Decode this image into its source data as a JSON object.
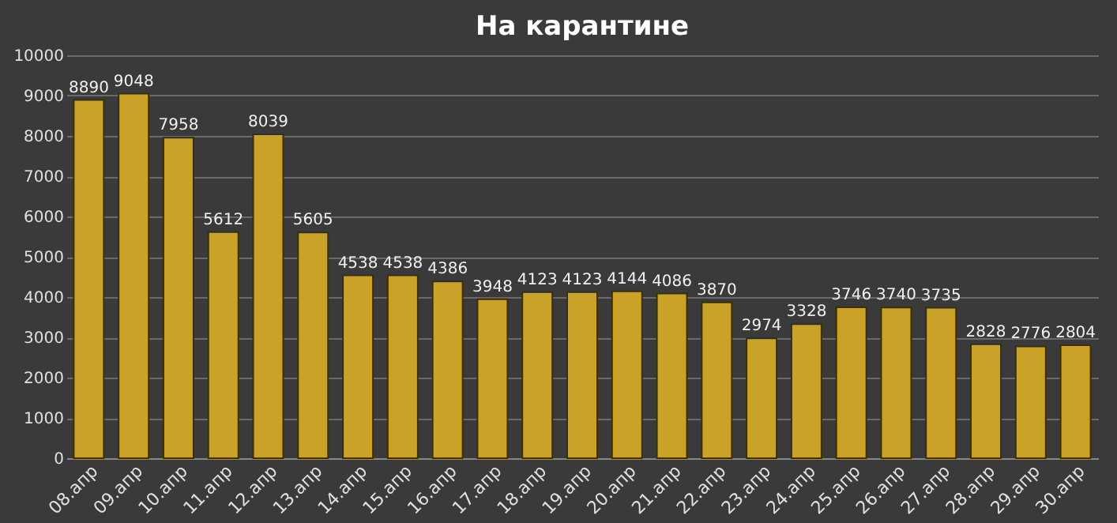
{
  "chart_data": {
    "type": "bar",
    "title": "На карантине",
    "categories": [
      "08.апр",
      "09.апр",
      "10.апр",
      "11.апр",
      "12.апр",
      "13.апр",
      "14.апр",
      "15.апр",
      "16.апр",
      "17.апр",
      "18.апр",
      "19.апр",
      "20.апр",
      "21.апр",
      "22.апр",
      "23.апр",
      "24.апр",
      "25.апр",
      "26.апр",
      "27.апр",
      "28.апр",
      "29.апр",
      "30.апр"
    ],
    "values": [
      8890,
      9048,
      7958,
      5612,
      8039,
      5605,
      4538,
      4538,
      4386,
      3948,
      4123,
      4123,
      4144,
      4086,
      3870,
      2974,
      3328,
      3746,
      3740,
      3735,
      2828,
      2776,
      2804
    ],
    "color": "#c9a227",
    "ylim": [
      0,
      10000
    ],
    "yticks": [
      0,
      1000,
      2000,
      3000,
      4000,
      5000,
      6000,
      7000,
      8000,
      9000,
      10000
    ],
    "grid": "y",
    "data_labels": true
  }
}
